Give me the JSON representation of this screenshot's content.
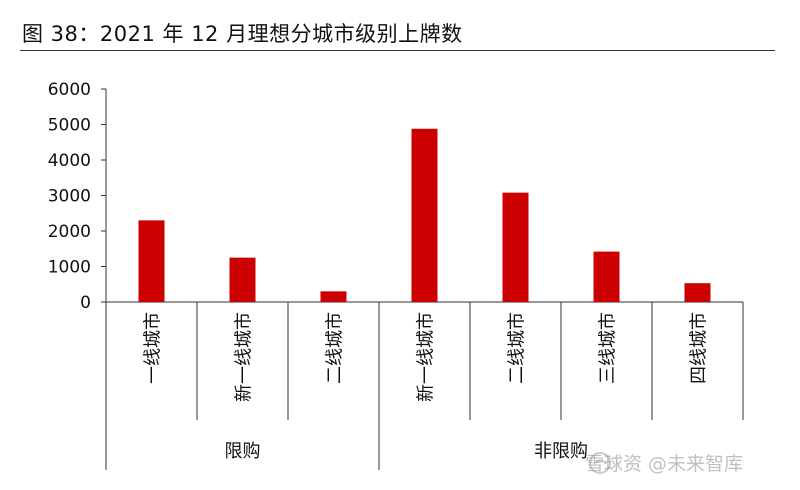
{
  "title": "图 38：2021 年 12 月理想分城市级别上牌数",
  "watermark": "雪球资 @未来智库",
  "colors": {
    "bar": "#cc0000",
    "axis": "#333333",
    "text": "#111111"
  },
  "chart_data": {
    "type": "bar",
    "title": "图 38：2021 年 12 月理想分城市级别上牌数",
    "categories": [
      "一线城市",
      "新一线城市",
      "二线城市",
      "新一线城市",
      "二线城市",
      "三线城市",
      "四线城市"
    ],
    "groups": [
      {
        "label": "限购",
        "count": 3
      },
      {
        "label": "非限购",
        "count": 4
      }
    ],
    "series": [
      {
        "values": [
          2300,
          1250,
          300,
          4880,
          3080,
          1420,
          530
        ]
      }
    ],
    "ylim": [
      0,
      6000
    ],
    "yticks": [
      0,
      1000,
      2000,
      3000,
      4000,
      5000,
      6000
    ],
    "xlabel": "",
    "ylabel": "",
    "grid": false,
    "legend": "none"
  }
}
